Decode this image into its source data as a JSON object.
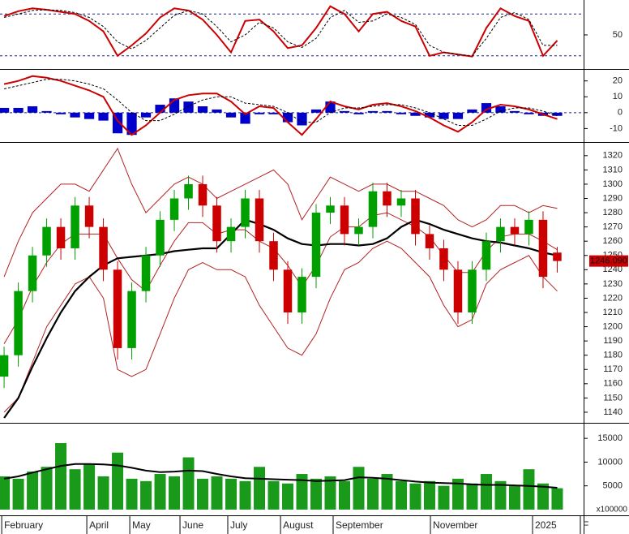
{
  "chart_data": [
    {
      "type": "line",
      "xlim": [
        -0.29,
        40.86
      ],
      "ylim": [
        0,
        100
      ],
      "yticks": [
        50
      ],
      "reference_lines": [
        20,
        80
      ],
      "series": [
        {
          "color": "#cc0000",
          "style": "solid",
          "values": [
            77,
            84,
            88,
            86,
            83,
            80,
            70,
            55,
            20,
            35,
            52,
            75,
            88,
            85,
            72,
            50,
            25,
            70,
            72,
            55,
            31,
            35,
            60,
            91,
            80,
            55,
            80,
            83,
            70,
            62,
            20,
            25,
            22,
            19,
            60,
            88,
            77,
            70,
            20,
            42
          ]
        },
        {
          "color": "#000000",
          "style": "dashed",
          "values": [
            75,
            80,
            85,
            86,
            85,
            82,
            75,
            62,
            40,
            30,
            42,
            60,
            78,
            85,
            80,
            62,
            40,
            50,
            68,
            60,
            40,
            32,
            45,
            75,
            85,
            68,
            70,
            80,
            75,
            65,
            35,
            25,
            22,
            20,
            45,
            75,
            82,
            72,
            35,
            35
          ]
        }
      ]
    },
    {
      "type": "macd",
      "xlim": [
        -0.29,
        40.86
      ],
      "ylim": [
        -19,
        27
      ],
      "yticks": [
        20,
        10,
        0,
        -10
      ],
      "hist_color": "#0000cc",
      "histogram": [
        3,
        3,
        4,
        1,
        -1,
        -3,
        -4,
        -5,
        -13,
        -14,
        -3,
        5,
        9,
        7,
        4,
        2,
        -3,
        -7,
        -1,
        -1,
        -6,
        -8,
        2,
        7,
        1,
        -1,
        1,
        1,
        -1,
        -2,
        -3,
        -4,
        -4,
        2,
        6,
        4,
        1,
        -1,
        -2,
        -2
      ],
      "series": [
        {
          "color": "#cc0000",
          "style": "solid",
          "values": [
            18,
            20,
            23,
            22,
            20,
            17,
            14,
            10,
            -5,
            -14,
            -8,
            0,
            8,
            11,
            12,
            12,
            7,
            -1,
            4,
            3,
            -6,
            -14,
            -4,
            7,
            4,
            2,
            5,
            6,
            4,
            1,
            -3,
            -8,
            -12,
            -6,
            2,
            5,
            4,
            2,
            -1,
            -4
          ]
        },
        {
          "color": "#000000",
          "style": "dashed",
          "values": [
            15,
            17,
            19,
            21,
            21,
            20,
            18,
            15,
            8,
            0,
            -5,
            -5,
            -1,
            4,
            8,
            10,
            10,
            6,
            5,
            4,
            0,
            -6,
            -6,
            0,
            3,
            3,
            4,
            5,
            5,
            3,
            0,
            -4,
            -8,
            -8,
            -4,
            1,
            3,
            3,
            1,
            -2
          ]
        }
      ]
    },
    {
      "type": "candlestick",
      "xlim": [
        -0.29,
        40.86
      ],
      "ylim": [
        1132,
        1329
      ],
      "yticks": [
        1320,
        1310,
        1300,
        1290,
        1280,
        1270,
        1260,
        1250,
        1240,
        1230,
        1220,
        1210,
        1200,
        1190,
        1180,
        1170,
        1160,
        1150,
        1140
      ],
      "up_color": "#00a000",
      "down_color": "#cc0000",
      "open": [
        1165,
        1180,
        1225,
        1250,
        1270,
        1255,
        1285,
        1270,
        1240,
        1185,
        1225,
        1250,
        1275,
        1290,
        1300,
        1285,
        1260,
        1270,
        1290,
        1260,
        1240,
        1210,
        1235,
        1280,
        1285,
        1265,
        1270,
        1295,
        1285,
        1290,
        1265,
        1255,
        1240,
        1210,
        1240,
        1260,
        1270,
        1265,
        1275,
        1252
      ],
      "high": [
        1186,
        1231,
        1256,
        1276,
        1276,
        1291,
        1291,
        1276,
        1246,
        1231,
        1256,
        1281,
        1296,
        1306,
        1306,
        1291,
        1276,
        1296,
        1296,
        1266,
        1246,
        1241,
        1286,
        1291,
        1291,
        1276,
        1301,
        1301,
        1296,
        1296,
        1271,
        1261,
        1246,
        1246,
        1266,
        1276,
        1276,
        1281,
        1281,
        1256
      ],
      "low": [
        1157,
        1172,
        1217,
        1242,
        1247,
        1247,
        1262,
        1232,
        1177,
        1177,
        1217,
        1242,
        1267,
        1282,
        1277,
        1252,
        1252,
        1262,
        1252,
        1232,
        1202,
        1202,
        1227,
        1272,
        1257,
        1257,
        1262,
        1277,
        1277,
        1257,
        1247,
        1232,
        1202,
        1202,
        1232,
        1252,
        1257,
        1257,
        1227,
        1238
      ],
      "close": [
        1180,
        1225,
        1250,
        1270,
        1255,
        1285,
        1270,
        1240,
        1185,
        1225,
        1250,
        1275,
        1290,
        1300,
        1285,
        1260,
        1270,
        1290,
        1260,
        1240,
        1210,
        1235,
        1280,
        1285,
        1265,
        1270,
        1295,
        1285,
        1290,
        1265,
        1255,
        1240,
        1210,
        1240,
        1260,
        1270,
        1265,
        1275,
        1235,
        1246.09
      ],
      "last_price_label": "1246.090",
      "series": [
        {
          "color": "#b22222",
          "width": 1,
          "values": [
            1235,
            1260,
            1280,
            1290,
            1300,
            1300,
            1295,
            1310,
            1325,
            1300,
            1280,
            1290,
            1300,
            1305,
            1300,
            1290,
            1295,
            1300,
            1305,
            1310,
            1300,
            1275,
            1290,
            1305,
            1300,
            1295,
            1300,
            1300,
            1295,
            1295,
            1290,
            1285,
            1275,
            1270,
            1275,
            1285,
            1285,
            1280,
            1285,
            1283
          ]
        },
        {
          "color": "#b22222",
          "width": 1,
          "values": [
            1188,
            1205,
            1228,
            1245,
            1258,
            1265,
            1265,
            1265,
            1248,
            1233,
            1225,
            1243,
            1260,
            1273,
            1273,
            1265,
            1268,
            1268,
            1260,
            1255,
            1243,
            1228,
            1243,
            1263,
            1270,
            1270,
            1278,
            1280,
            1275,
            1270,
            1263,
            1250,
            1238,
            1238,
            1253,
            1263,
            1265,
            1265,
            1260,
            1254
          ]
        },
        {
          "color": "#b22222",
          "width": 1,
          "values": [
            1140,
            1150,
            1175,
            1200,
            1215,
            1230,
            1235,
            1220,
            1170,
            1165,
            1170,
            1195,
            1220,
            1240,
            1245,
            1240,
            1240,
            1235,
            1215,
            1200,
            1185,
            1180,
            1195,
            1220,
            1240,
            1245,
            1255,
            1260,
            1255,
            1245,
            1235,
            1215,
            1200,
            1205,
            1230,
            1240,
            1245,
            1250,
            1235,
            1225
          ]
        },
        {
          "color": "#000000",
          "width": 2.2,
          "values": [
            1136,
            1150,
            1172,
            1192,
            1210,
            1225,
            1235,
            1243,
            1248,
            1249,
            1250,
            1251,
            1253,
            1254,
            1255,
            1255,
            1265,
            1275,
            1272,
            1268,
            1262,
            1258,
            1257,
            1258,
            1258,
            1257,
            1258,
            1262,
            1270,
            1275,
            1272,
            1268,
            1265,
            1262,
            1260,
            1259,
            1257,
            1255,
            1252,
            1250
          ]
        }
      ]
    },
    {
      "type": "bar",
      "xlim": [
        -0.29,
        40.86
      ],
      "ylim": [
        -1380,
        18100
      ],
      "yticks": [
        15000,
        10000,
        5000
      ],
      "y_unit_label": "x100000",
      "color": "#1a9a1a",
      "values": [
        7000,
        6500,
        8000,
        9000,
        14000,
        8500,
        9500,
        7000,
        12000,
        6500,
        6000,
        7500,
        7000,
        11000,
        6500,
        7000,
        6500,
        6000,
        9000,
        6000,
        5500,
        7500,
        6500,
        7000,
        6000,
        9000,
        6500,
        7500,
        6000,
        5500,
        6000,
        5000,
        6500,
        5500,
        7500,
        6000,
        5000,
        8500,
        5500,
        4500
      ],
      "series": [
        {
          "color": "#000000",
          "width": 2,
          "values": [
            6500,
            7000,
            7800,
            8500,
            9200,
            9600,
            9600,
            9500,
            9300,
            8800,
            8200,
            7900,
            8000,
            8200,
            8100,
            7500,
            7000,
            6600,
            6500,
            6400,
            6300,
            6200,
            6000,
            6100,
            6200,
            6800,
            6700,
            6500,
            6200,
            5900,
            5700,
            5600,
            5500,
            5300,
            5200,
            5200,
            5100,
            5000,
            4800,
            4600
          ]
        }
      ],
      "xticks": [
        {
          "value": -0.17,
          "label": "February"
        },
        {
          "value": 5.83,
          "label": "April"
        },
        {
          "value": 8.86,
          "label": "May"
        },
        {
          "value": 12.4,
          "label": "June"
        },
        {
          "value": 15.77,
          "label": "July"
        },
        {
          "value": 19.49,
          "label": "August"
        },
        {
          "value": 23.2,
          "label": "September"
        },
        {
          "value": 30.06,
          "label": "November"
        },
        {
          "value": 37.26,
          "label": "2025"
        },
        {
          "value": 40.63,
          "label": "F"
        }
      ]
    }
  ]
}
